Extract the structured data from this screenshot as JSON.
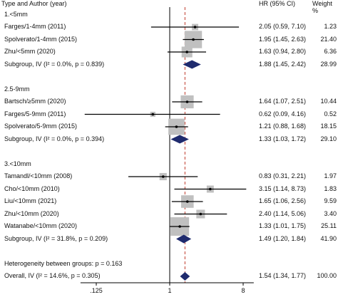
{
  "chart_data": {
    "type": "forest",
    "header": {
      "study": "Type and Author (year)",
      "hr": "HR (95% CI)",
      "weight": "Weight %"
    },
    "x_scale": "log",
    "x_ticks": [
      ".125",
      "1",
      "8"
    ],
    "reference_line": 1,
    "overall_line": 1.54,
    "rows": [
      {
        "kind": "group",
        "label": "1.<5mm"
      },
      {
        "kind": "study",
        "label": "Farges/1-4mm (2011)",
        "hr": 2.05,
        "lo": 0.59,
        "hi": 7.1,
        "ci_text": "2.05 (0.59, 7.10)",
        "weight": 1.23,
        "weight_text": "1.23"
      },
      {
        "kind": "study",
        "label": "Spolverato/1-4mm (2015)",
        "hr": 1.95,
        "lo": 1.45,
        "hi": 2.63,
        "ci_text": "1.95 (1.45, 2.63)",
        "weight": 21.4,
        "weight_text": "21.40"
      },
      {
        "kind": "study",
        "label": "Zhu/<5mm (2020)",
        "hr": 1.63,
        "lo": 0.94,
        "hi": 2.8,
        "ci_text": "1.63 (0.94, 2.80)",
        "weight": 6.36,
        "weight_text": "6.36"
      },
      {
        "kind": "subtotal",
        "label": "Subgroup, IV (I² = 0.0%, p = 0.839)",
        "hr": 1.88,
        "lo": 1.45,
        "hi": 2.42,
        "ci_text": "1.88 (1.45, 2.42)",
        "weight_text": "28.99"
      },
      {
        "kind": "blank"
      },
      {
        "kind": "group",
        "label": "2.5-9mm"
      },
      {
        "kind": "study",
        "label": "Bartsch/≥5mm (2020)",
        "hr": 1.64,
        "lo": 1.07,
        "hi": 2.51,
        "ci_text": "1.64 (1.07, 2.51)",
        "weight": 10.44,
        "weight_text": "10.44"
      },
      {
        "kind": "study",
        "label": "Farges/5-9mm (2011)",
        "hr": 0.62,
        "lo": 0.09,
        "hi": 4.16,
        "ci_text": "0.62 (0.09, 4.16)",
        "weight": 0.52,
        "weight_text": "0.52"
      },
      {
        "kind": "study",
        "label": "Spolverato/5-9mm (2015)",
        "hr": 1.21,
        "lo": 0.88,
        "hi": 1.68,
        "ci_text": "1.21 (0.88, 1.68)",
        "weight": 18.15,
        "weight_text": "18.15"
      },
      {
        "kind": "subtotal",
        "label": "Subgroup, IV (I² = 0.0%, p = 0.394)",
        "hr": 1.33,
        "lo": 1.03,
        "hi": 1.72,
        "ci_text": "1.33 (1.03, 1.72)",
        "weight_text": "29.10"
      },
      {
        "kind": "blank"
      },
      {
        "kind": "group",
        "label": "3.<10mm"
      },
      {
        "kind": "study",
        "label": "Tamandl/<10mm (2008)",
        "hr": 0.83,
        "lo": 0.31,
        "hi": 2.21,
        "ci_text": "0.83 (0.31, 2.21)",
        "weight": 1.97,
        "weight_text": "1.97"
      },
      {
        "kind": "study",
        "label": "Cho/<10mm (2010)",
        "hr": 3.15,
        "lo": 1.14,
        "hi": 8.73,
        "ci_text": "3.15 (1.14, 8.73)",
        "weight": 1.83,
        "weight_text": "1.83"
      },
      {
        "kind": "study",
        "label": "Liu/<10mm (2021)",
        "hr": 1.65,
        "lo": 1.06,
        "hi": 2.56,
        "ci_text": "1.65 (1.06, 2.56)",
        "weight": 9.59,
        "weight_text": "9.59"
      },
      {
        "kind": "study",
        "label": "Zhu/<10mm (2020)",
        "hr": 2.4,
        "lo": 1.14,
        "hi": 5.06,
        "ci_text": "2.40 (1.14, 5.06)",
        "weight": 3.4,
        "weight_text": "3.40"
      },
      {
        "kind": "study",
        "label": "Watanabe/<10mm (2020)",
        "hr": 1.33,
        "lo": 1.01,
        "hi": 1.75,
        "ci_text": "1.33 (1.01, 1.75)",
        "weight": 25.11,
        "weight_text": "25.11"
      },
      {
        "kind": "subtotal",
        "label": "Subgroup, IV (I² = 31.8%, p = 0.209)",
        "hr": 1.49,
        "lo": 1.2,
        "hi": 1.84,
        "ci_text": "1.49 (1.20, 1.84)",
        "weight_text": "41.90"
      },
      {
        "kind": "blank"
      },
      {
        "kind": "note",
        "label": "Heterogeneity between groups: p = 0.163"
      },
      {
        "kind": "overall",
        "label": "Overall, IV (I² = 14.6%, p = 0.305)",
        "hr": 1.54,
        "lo": 1.34,
        "hi": 1.77,
        "ci_text": "1.54 (1.34, 1.77)",
        "weight_text": "100.00"
      }
    ],
    "colors": {
      "box": "#c0c0c0",
      "diamond": "#1f2b6e",
      "overall_line": "#c0392b",
      "line": "#000000"
    }
  }
}
